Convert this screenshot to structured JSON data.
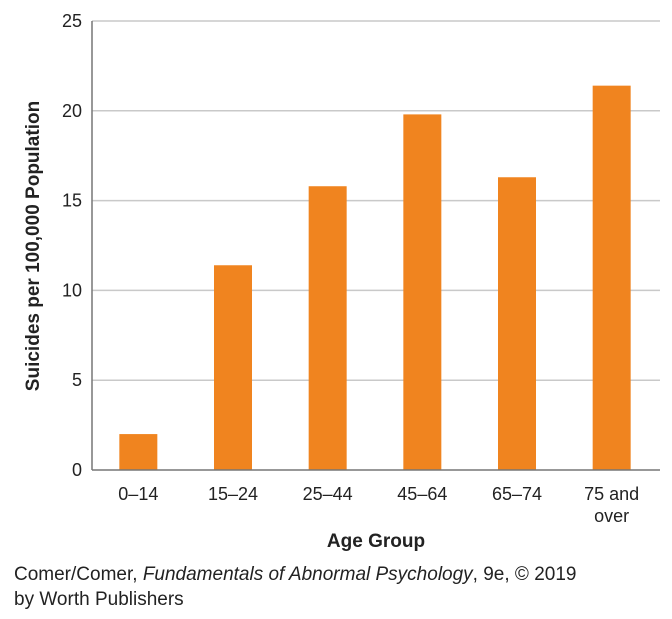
{
  "chart_data": {
    "type": "bar",
    "title": "",
    "xlabel": "Age Group",
    "ylabel": "Suicides per 100,000 Population",
    "categories": [
      "0–14",
      "15–24",
      "25–44",
      "45–64",
      "65–74",
      "75 and over"
    ],
    "category_lines": [
      [
        "0–14"
      ],
      [
        "15–24"
      ],
      [
        "25–44"
      ],
      [
        "45–64"
      ],
      [
        "65–74"
      ],
      [
        "75 and",
        "over"
      ]
    ],
    "values": [
      2.0,
      11.4,
      15.8,
      19.8,
      16.3,
      21.4
    ],
    "ylim": [
      0,
      25
    ],
    "yticks": [
      0,
      5,
      10,
      15,
      20,
      25
    ],
    "grid": true,
    "bar_color": "#F0841F"
  },
  "credit": {
    "authors": "Comer/Comer,",
    "book_title": "Fundamentals of Abnormal Psychology",
    "edition": ", 9e, © 2019",
    "publisher": "by Worth Publishers"
  }
}
